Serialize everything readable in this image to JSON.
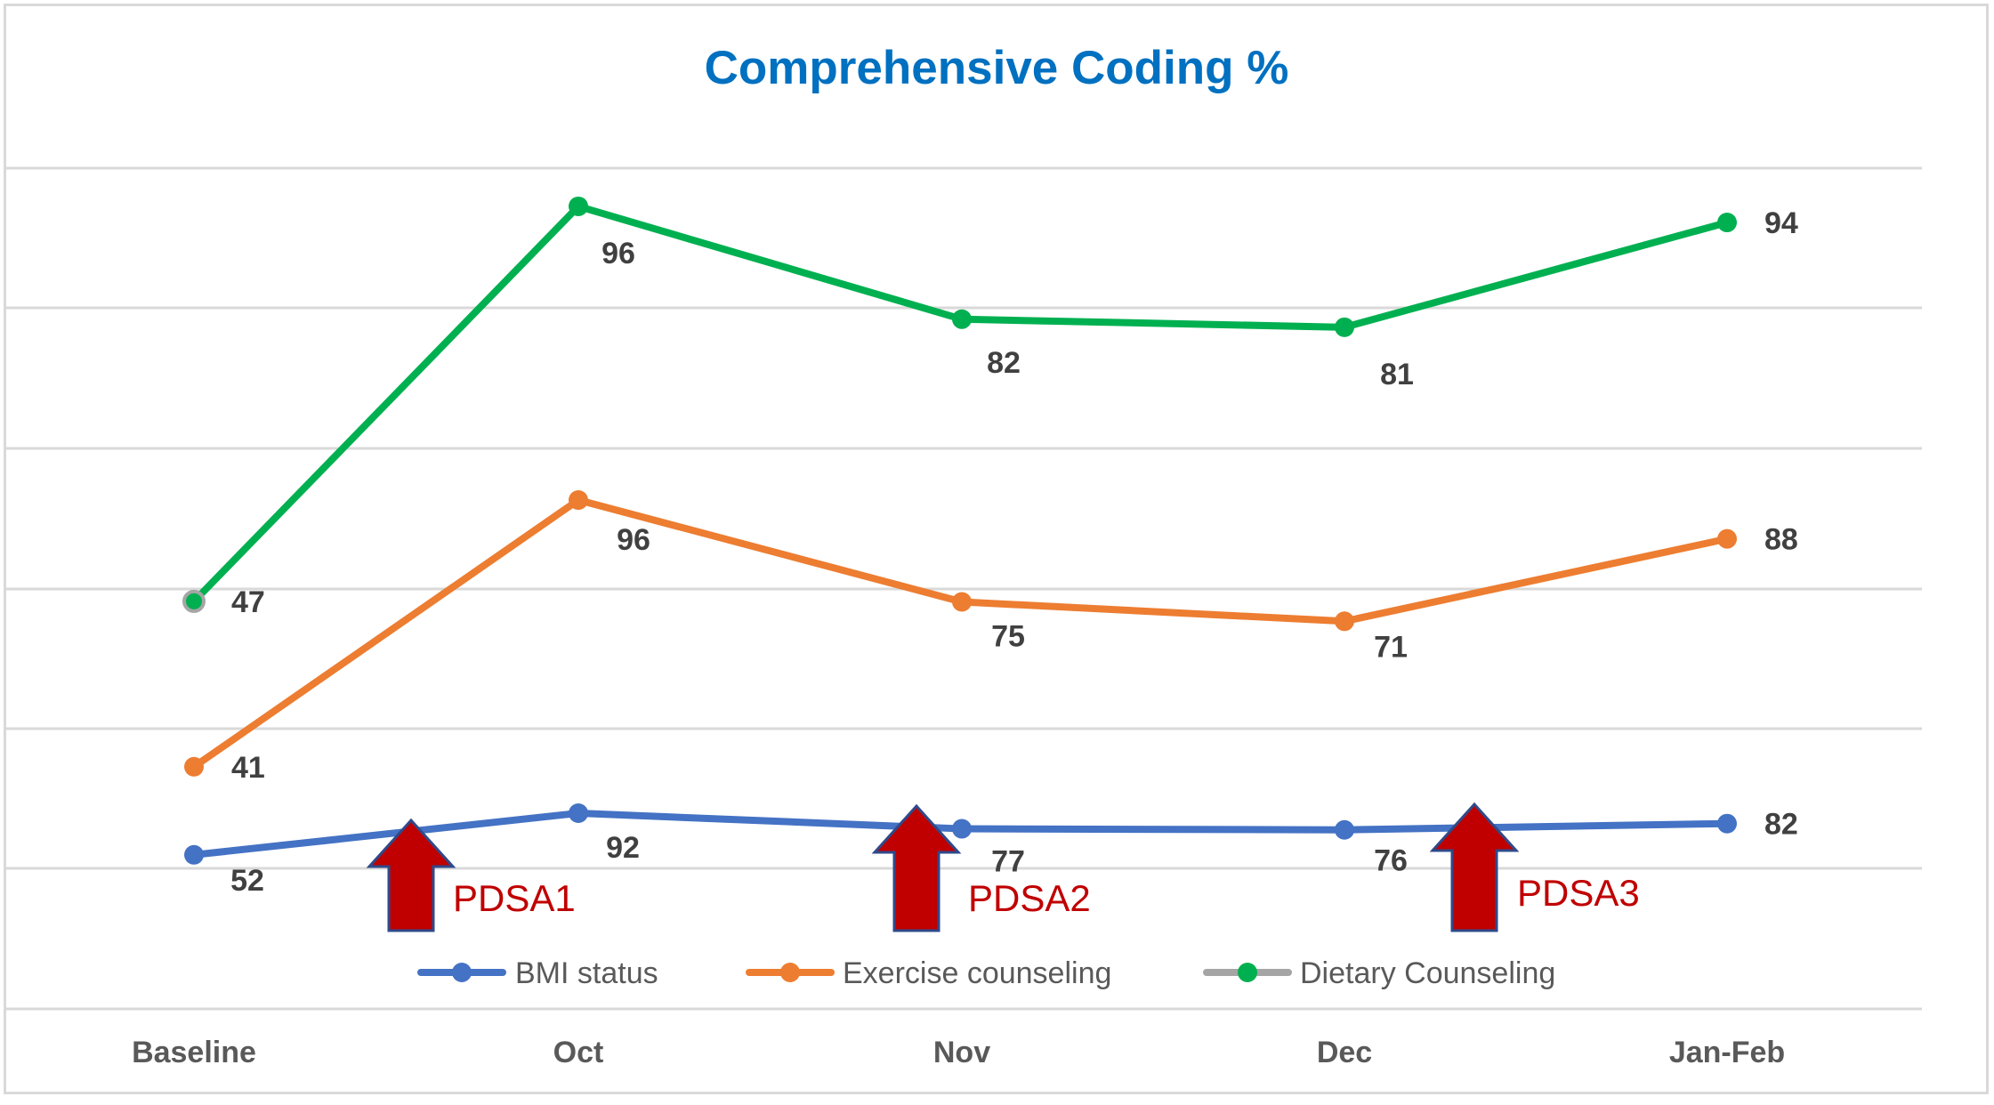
{
  "chart_data": {
    "type": "line",
    "title": "Comprehensive Coding %",
    "categories": [
      "Baseline",
      "Oct",
      "Nov",
      "Dec",
      "Jan-Feb"
    ],
    "series": [
      {
        "name": "BMI status",
        "values": [
          52,
          92,
          77,
          76,
          82
        ],
        "color": "#4472c4"
      },
      {
        "name": "Exercise counseling",
        "values": [
          41,
          96,
          75,
          71,
          88
        ],
        "color": "#ed7d31"
      },
      {
        "name": "Dietary Counseling",
        "values": [
          47,
          96,
          82,
          81,
          94
        ],
        "color": "#00b050",
        "legend_line_color": "#a5a5a5"
      }
    ],
    "grid": true,
    "legend_placement": "bottom",
    "annotations": [
      {
        "label": "PDSA1",
        "between": [
          "Baseline",
          "Oct"
        ],
        "color": "#c00000"
      },
      {
        "label": "PDSA2",
        "between": [
          "Oct",
          "Nov"
        ],
        "color": "#c00000"
      },
      {
        "label": "PDSA3",
        "between": [
          "Dec",
          "Jan-Feb"
        ],
        "color": "#c00000"
      }
    ],
    "xlabel": "",
    "ylabel": ""
  }
}
